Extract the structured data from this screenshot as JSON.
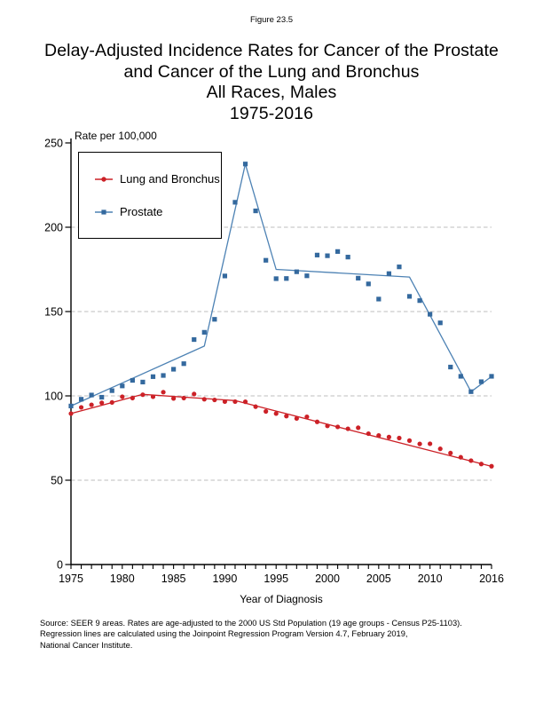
{
  "page": {
    "figure_label": "Figure 23.5",
    "title_lines": [
      "Delay-Adjusted Incidence Rates for Cancer of the Prostate",
      "and Cancer of the Lung and Bronchus",
      "All Races, Males",
      "1975-2016"
    ],
    "footer_lines": [
      "Source: SEER 9 areas.  Rates are age-adjusted to the 2000 US Std Population (19 age groups - Census P25-1103).",
      "Regression lines are calculated using the Joinpoint Regression Program Version 4.7, February 2019,",
      "National Cancer Institute."
    ]
  },
  "chart_data": {
    "type": "scatter",
    "subtype": "scatter points with joinpoint regression lines",
    "ylabel": "Rate per 100,000",
    "xlabel": "Year of Diagnosis",
    "ylim": [
      0,
      250
    ],
    "yticks": [
      0,
      50,
      100,
      150,
      200,
      250
    ],
    "gridlines_y": [
      50,
      100,
      150,
      200
    ],
    "grid_style": "dashed gray horizontal lines",
    "xlim": [
      1975,
      2016
    ],
    "xtick_labels": [
      1975,
      1980,
      1985,
      1990,
      1995,
      2000,
      2005,
      2010,
      2016
    ],
    "xticks_minor_every_year": true,
    "legend_position": "top-left inside plot, black-bordered white box",
    "x": [
      1975,
      1976,
      1977,
      1978,
      1979,
      1980,
      1981,
      1982,
      1983,
      1984,
      1985,
      1986,
      1987,
      1988,
      1989,
      1990,
      1991,
      1992,
      1993,
      1994,
      1995,
      1996,
      1997,
      1998,
      1999,
      2000,
      2001,
      2002,
      2003,
      2004,
      2005,
      2006,
      2007,
      2008,
      2009,
      2010,
      2011,
      2012,
      2013,
      2014,
      2015,
      2016
    ],
    "series": [
      {
        "name": "Lung and Bronchus",
        "marker": "circle",
        "color": "#cc2127",
        "line_color": "#cc2127",
        "values": [
          89.5,
          93.2,
          94.7,
          95.9,
          96.1,
          99.5,
          98.7,
          100.7,
          99.5,
          102.2,
          98.5,
          98.7,
          101.1,
          98.0,
          97.6,
          96.6,
          96.6,
          96.5,
          93.6,
          90.8,
          89.5,
          88.0,
          86.6,
          87.6,
          84.6,
          82.2,
          81.6,
          80.5,
          81.1,
          77.6,
          76.5,
          75.6,
          75.0,
          73.5,
          71.5,
          71.6,
          68.6,
          66.1,
          63.6,
          61.6,
          59.6,
          58.3
        ]
      },
      {
        "name": "Prostate",
        "marker": "square",
        "color": "#34699e",
        "line_color": "#4d82b4",
        "values": [
          94.0,
          98.0,
          100.5,
          99.2,
          103.1,
          105.9,
          109.2,
          108.2,
          111.4,
          112.1,
          115.8,
          119.1,
          133.4,
          137.7,
          145.4,
          171.1,
          214.8,
          237.5,
          209.7,
          180.4,
          169.5,
          169.6,
          173.6,
          171.2,
          183.5,
          183.1,
          185.6,
          182.3,
          169.8,
          166.4,
          157.4,
          172.5,
          176.5,
          159.0,
          156.5,
          148.4,
          143.3,
          117.1,
          111.6,
          102.5,
          108.4,
          111.6
        ]
      }
    ],
    "trend_lines": [
      {
        "series": "Lung and Bronchus",
        "color": "#cc2127",
        "points": [
          [
            1975,
            89.5
          ],
          [
            1982,
            100.9
          ],
          [
            1991,
            97.2
          ],
          [
            2016,
            58.2
          ]
        ]
      },
      {
        "series": "Prostate",
        "color": "#4d82b4",
        "points": [
          [
            1975,
            94.0
          ],
          [
            1988,
            129.5
          ],
          [
            1992,
            237.5
          ],
          [
            1995,
            175.0
          ],
          [
            2008,
            170.5
          ],
          [
            2014,
            102.5
          ],
          [
            2016,
            111.5
          ]
        ]
      }
    ],
    "style": {
      "axis_color": "#000000",
      "gridline_color": "#bdbdbd",
      "background": "#ffffff"
    }
  }
}
